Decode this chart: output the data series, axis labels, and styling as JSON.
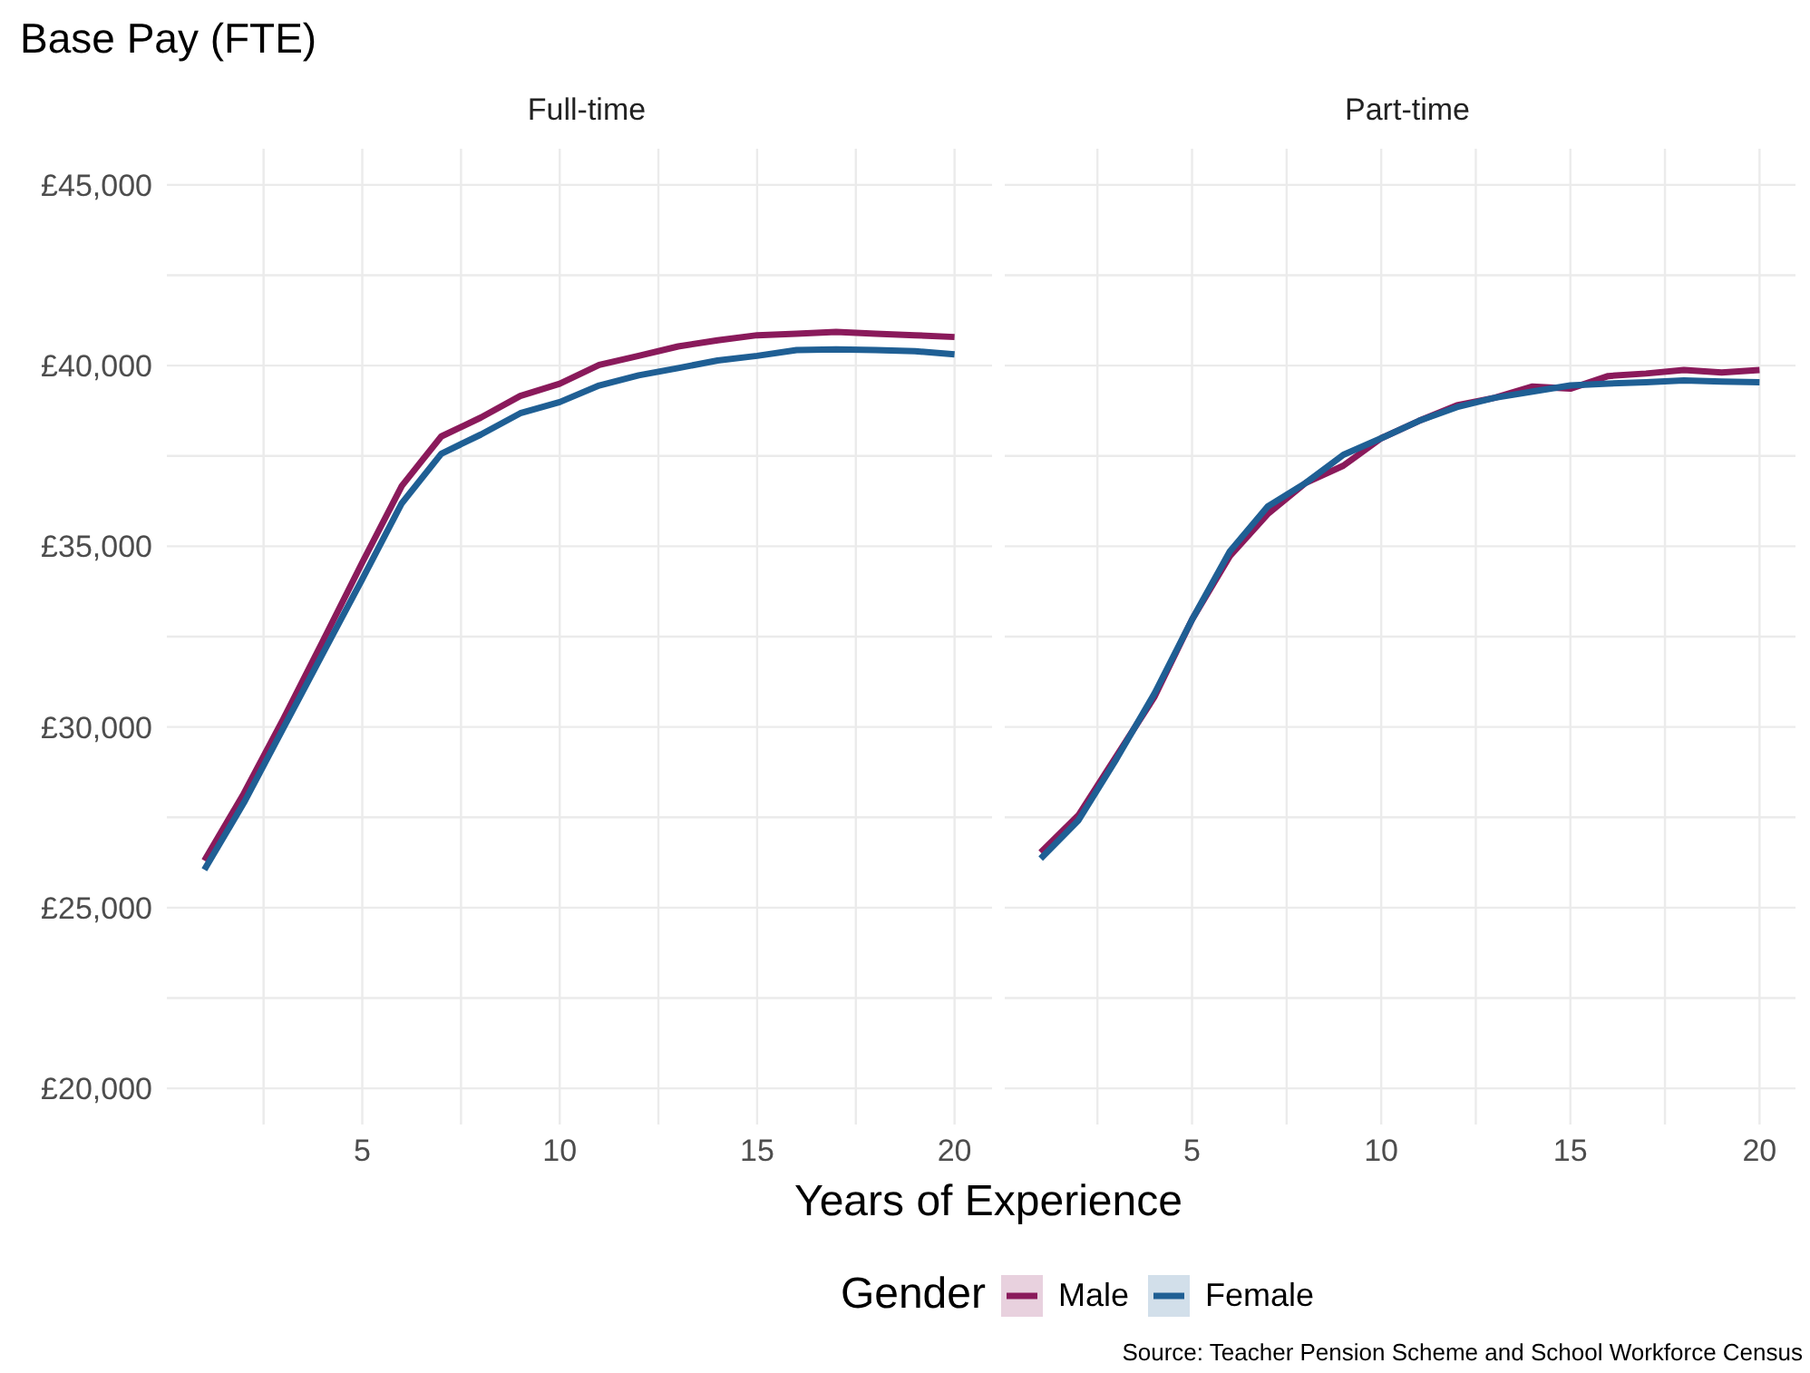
{
  "chart_data": [
    {
      "type": "line",
      "title": "Base Pay (FTE)",
      "subtitle": "Full-time",
      "xlabel": "Years of Experience",
      "legend_title": "Gender",
      "legend": "bottom",
      "grid": true,
      "x": [
        1,
        2,
        3,
        4,
        5,
        6,
        7,
        8,
        9,
        10,
        11,
        12,
        13,
        14,
        15,
        16,
        17,
        18,
        19,
        20
      ],
      "xlim": [
        0.05,
        20.95
      ],
      "xticks": [
        {
          "value": 2.5,
          "label": null
        },
        5,
        {
          "value": 7.5,
          "label": null
        },
        10,
        {
          "value": 12.5,
          "label": null
        },
        15,
        {
          "value": 17.5,
          "label": null
        },
        20
      ],
      "ylim": [
        19000,
        46000
      ],
      "yticks": [
        {
          "value": 20000,
          "label": "£20,000"
        },
        {
          "value": 22500,
          "label": null
        },
        {
          "value": 25000,
          "label": "£25,000"
        },
        {
          "value": 27500,
          "label": null
        },
        {
          "value": 30000,
          "label": "£30,000"
        },
        {
          "value": 32500,
          "label": null
        },
        {
          "value": 35000,
          "label": "£35,000"
        },
        {
          "value": 37500,
          "label": null
        },
        {
          "value": 40000,
          "label": "£40,000"
        },
        {
          "value": 42500,
          "label": null
        },
        {
          "value": 45000,
          "label": "£45,000"
        }
      ],
      "series": [
        {
          "name": "Male",
          "color": "#8a1a5b",
          "values": [
            26300,
            28160,
            30220,
            32370,
            34550,
            36670,
            38040,
            38560,
            39160,
            39500,
            40020,
            40270,
            40530,
            40700,
            40840,
            40880,
            40930,
            40880,
            40840,
            40790
          ]
        },
        {
          "name": "Female",
          "color": "#1f5f94",
          "values": [
            26050,
            27900,
            29970,
            32030,
            34090,
            36190,
            37560,
            38090,
            38680,
            38990,
            39450,
            39730,
            39930,
            40140,
            40270,
            40430,
            40450,
            40430,
            40400,
            40310
          ]
        }
      ]
    },
    {
      "type": "line",
      "subtitle": "Part-time",
      "grid": true,
      "tick_labels": "x",
      "annotations": [
        "Source: Teacher Pension Scheme and School Workforce Census"
      ],
      "x": [
        1,
        2,
        3,
        4,
        5,
        6,
        7,
        8,
        9,
        10,
        11,
        12,
        13,
        14,
        15,
        16,
        17,
        18,
        19,
        20
      ],
      "xlim": [
        0.05,
        20.95
      ],
      "xticks": [
        {
          "value": 2.5,
          "label": null
        },
        5,
        {
          "value": 7.5,
          "label": null
        },
        10,
        {
          "value": 12.5,
          "label": null
        },
        15,
        {
          "value": 17.5,
          "label": null
        },
        20
      ],
      "ylim": [
        19000,
        46000
      ],
      "yticks": [
        {
          "value": 20000,
          "label": null
        },
        {
          "value": 22500,
          "label": null
        },
        {
          "value": 25000,
          "label": null
        },
        {
          "value": 27500,
          "label": null
        },
        {
          "value": 30000,
          "label": null
        },
        {
          "value": 32500,
          "label": null
        },
        {
          "value": 35000,
          "label": null
        },
        {
          "value": 37500,
          "label": null
        },
        {
          "value": 40000,
          "label": null
        },
        {
          "value": 42500,
          "label": null
        },
        {
          "value": 45000,
          "label": null
        }
      ],
      "series": [
        {
          "color": "#8a1a5b",
          "values": [
            26530,
            27560,
            29190,
            30820,
            32970,
            34730,
            35890,
            36750,
            37230,
            37990,
            38470,
            38900,
            39110,
            39420,
            39360,
            39710,
            39780,
            39880,
            39810,
            39880
          ]
        },
        {
          "color": "#1f5f94",
          "values": [
            26360,
            27420,
            29110,
            30910,
            32970,
            34860,
            36100,
            36750,
            37530,
            37990,
            38470,
            38850,
            39110,
            39280,
            39450,
            39500,
            39540,
            39590,
            39560,
            39540
          ]
        }
      ]
    }
  ]
}
